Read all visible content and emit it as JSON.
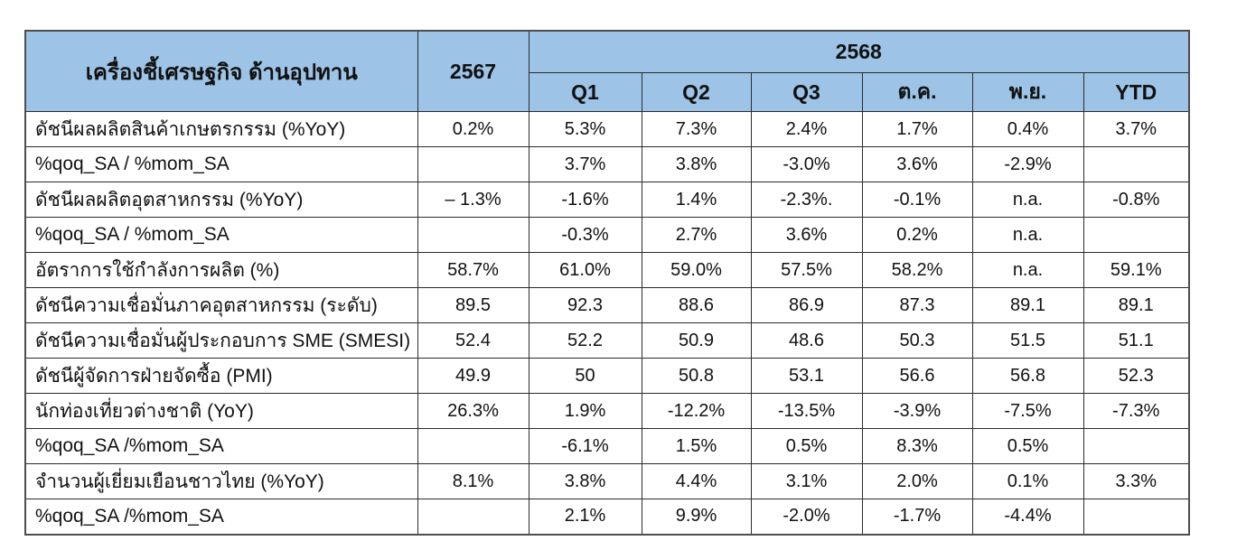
{
  "table": {
    "title_header": "เครื่องชี้เศรษฐกิจ ด้านอุปทาน",
    "year_prev": "2567",
    "year_curr": "2568",
    "period_headers": [
      "Q1",
      "Q2",
      "Q3",
      "ต.ค.",
      "พ.ย.",
      "YTD"
    ],
    "rows": [
      {
        "label": "ดัชนีผลผลิตสินค้าเกษตรกรรม (%YoY)",
        "values": [
          "0.2%",
          "5.3%",
          "7.3%",
          "2.4%",
          "1.7%",
          "0.4%",
          "3.7%"
        ]
      },
      {
        "label": "%qoq_SA / %mom_SA",
        "values": [
          "",
          "3.7%",
          "3.8%",
          "-3.0%",
          "3.6%",
          "-2.9%",
          ""
        ]
      },
      {
        "label": "ดัชนีผลผลิตอุตสาหกรรม (%YoY)",
        "values": [
          "– 1.3%",
          "-1.6%",
          "1.4%",
          "-2.3%.",
          "-0.1%",
          "n.a.",
          "-0.8%"
        ]
      },
      {
        "label": "%qoq_SA / %mom_SA",
        "values": [
          "",
          "-0.3%",
          "2.7%",
          "3.6%",
          "0.2%",
          "n.a.",
          ""
        ]
      },
      {
        "label": "อัตราการใช้กำลังการผลิต (%)",
        "values": [
          "58.7%",
          "61.0%",
          "59.0%",
          "57.5%",
          "58.2%",
          "n.a.",
          "59.1%"
        ]
      },
      {
        "label": "ดัชนีความเชื่อมั่นภาคอุตสาหกรรม (ระดับ)",
        "values": [
          "89.5",
          "92.3",
          "88.6",
          "86.9",
          "87.3",
          "89.1",
          "89.1"
        ]
      },
      {
        "label": "ดัชนีความเชื่อมั่นผู้ประกอบการ SME (SMESI)",
        "values": [
          "52.4",
          "52.2",
          "50.9",
          "48.6",
          "50.3",
          "51.5",
          "51.1"
        ]
      },
      {
        "label": "ดัชนีผู้จัดการฝ่ายจัดซื้อ (PMI)",
        "values": [
          "49.9",
          "50",
          "50.8",
          "53.1",
          "56.6",
          "56.8",
          "52.3"
        ]
      },
      {
        "label": "นักท่องเที่ยวต่างชาติ (YoY)",
        "values": [
          "26.3%",
          "1.9%",
          "-12.2%",
          "-13.5%",
          "-3.9%",
          "-7.5%",
          "-7.3%"
        ]
      },
      {
        "label": "%qoq_SA /%mom_SA",
        "values": [
          "",
          "-6.1%",
          "1.5%",
          "0.5%",
          "8.3%",
          "0.5%",
          ""
        ]
      },
      {
        "label": "จำนวนผู้เยี่ยมเยือนชาวไทย (%YoY)",
        "values": [
          "8.1%",
          "3.8%",
          "4.4%",
          "3.1%",
          "2.0%",
          "0.1%",
          "3.3%"
        ]
      },
      {
        "label": "%qoq_SA /%mom_SA",
        "values": [
          "",
          "2.1%",
          "9.9%",
          "-2.0%",
          "-1.7%",
          "-4.4%",
          ""
        ]
      }
    ]
  },
  "colors": {
    "header_bg": "#9DC3E6",
    "inner_border": "#2b2b2b",
    "outer_border": "#4d4d4d"
  }
}
